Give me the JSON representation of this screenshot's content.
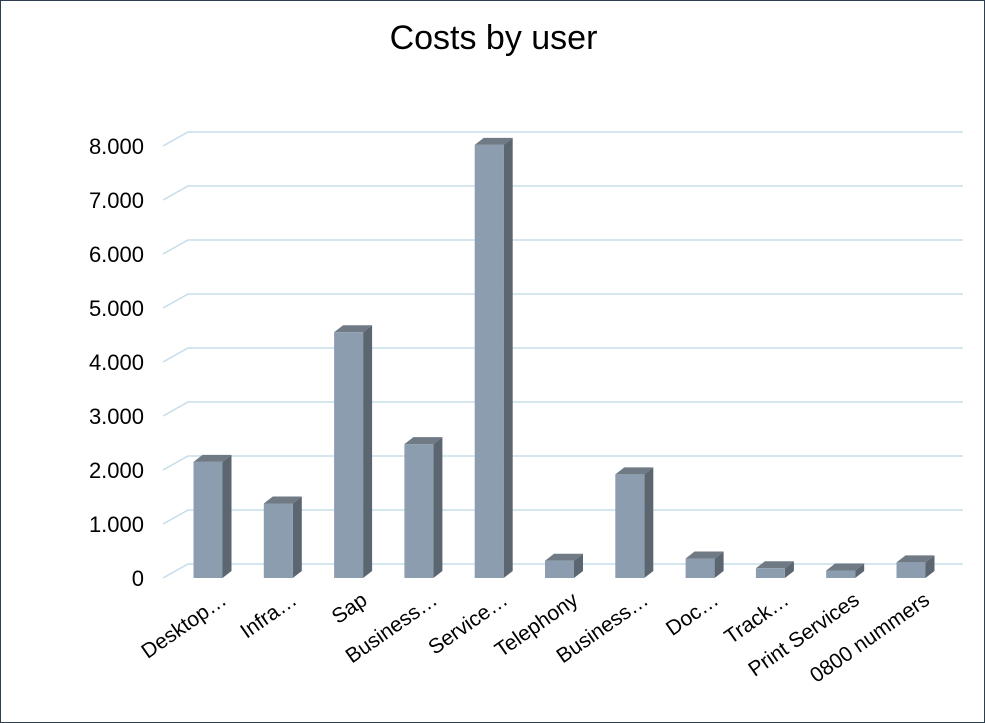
{
  "chart_data": {
    "type": "bar",
    "title": "Costs by user",
    "xlabel": "",
    "ylabel": "",
    "categories": [
      "Desktop…",
      "Infra…",
      "Sap",
      "Business…",
      "Service…",
      "Telephony",
      "Business…",
      "Doc…",
      "Track…",
      "Print Services",
      "0800 nummers"
    ],
    "values": [
      2150,
      1380,
      4550,
      2480,
      8020,
      320,
      1920,
      360,
      180,
      140,
      290
    ],
    "ylim": [
      0,
      8000
    ],
    "yticks": [
      "0",
      "1.000",
      "2.000",
      "3.000",
      "4.000",
      "5.000",
      "6.000",
      "7.000",
      "8.000"
    ],
    "grid": true,
    "legend": "none",
    "colors": {
      "bar_front": "#8c9daf",
      "bar_side": "#5c6670",
      "bar_top": "#6f7a85",
      "gridline": "#c5dde8"
    }
  }
}
